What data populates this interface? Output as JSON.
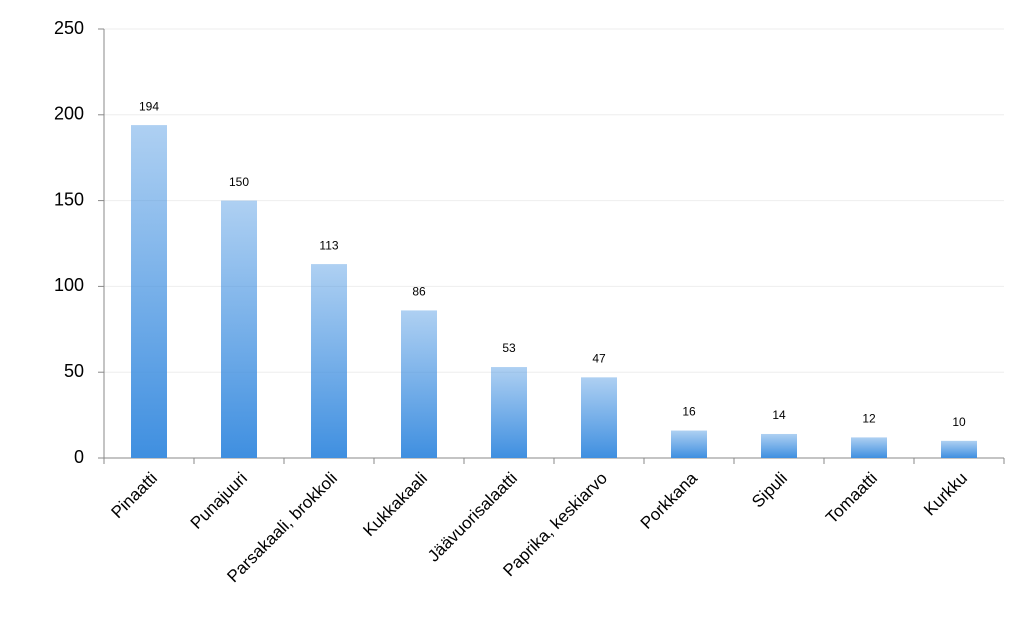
{
  "chart_data": {
    "type": "bar",
    "categories": [
      "Pinaatti",
      "Punajuuri",
      "Parsakaali, brokkoli",
      "Kukkakaali",
      "Jäävuorisalaatti",
      "Paprika, keskiarvo",
      "Porkkana",
      "Sipuli",
      "Tomaatti",
      "Kurkku"
    ],
    "values": [
      194,
      150,
      113,
      86,
      53,
      47,
      16,
      14,
      12,
      10
    ],
    "color": "#3f8fe0",
    "ylim": [
      0,
      250
    ],
    "yticks": [
      0,
      50,
      100,
      150,
      200,
      250
    ],
    "grid": true
  }
}
